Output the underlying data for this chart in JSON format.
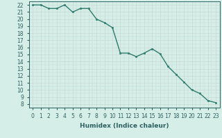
{
  "x": [
    0,
    1,
    2,
    3,
    4,
    5,
    6,
    7,
    8,
    9,
    10,
    11,
    12,
    13,
    14,
    15,
    16,
    17,
    18,
    19,
    20,
    21,
    22,
    23
  ],
  "y": [
    22,
    22,
    21.5,
    21.5,
    22,
    21,
    21.5,
    21.5,
    20,
    19.5,
    18.8,
    15.2,
    15.2,
    14.7,
    15.2,
    15.8,
    15.1,
    13.3,
    12.2,
    11.1,
    10,
    9.5,
    8.5,
    8.2
  ],
  "line_color": "#2e7b6e",
  "marker_color": "#2e7b6e",
  "bg_color": "#d5eee8",
  "grid_color": "#c8d8d0",
  "xlabel": "Humidex (Indice chaleur)",
  "ylim": [
    7.5,
    22.5
  ],
  "xlim": [
    -0.5,
    23.5
  ],
  "yticks": [
    8,
    9,
    10,
    11,
    12,
    13,
    14,
    15,
    16,
    17,
    18,
    19,
    20,
    21,
    22
  ],
  "xticks": [
    0,
    1,
    2,
    3,
    4,
    5,
    6,
    7,
    8,
    9,
    10,
    11,
    12,
    13,
    14,
    15,
    16,
    17,
    18,
    19,
    20,
    21,
    22,
    23
  ],
  "tick_color": "#2e6060",
  "label_fontsize": 6.5,
  "tick_fontsize": 5.5,
  "marker_size": 2.0,
  "line_width": 1.0
}
